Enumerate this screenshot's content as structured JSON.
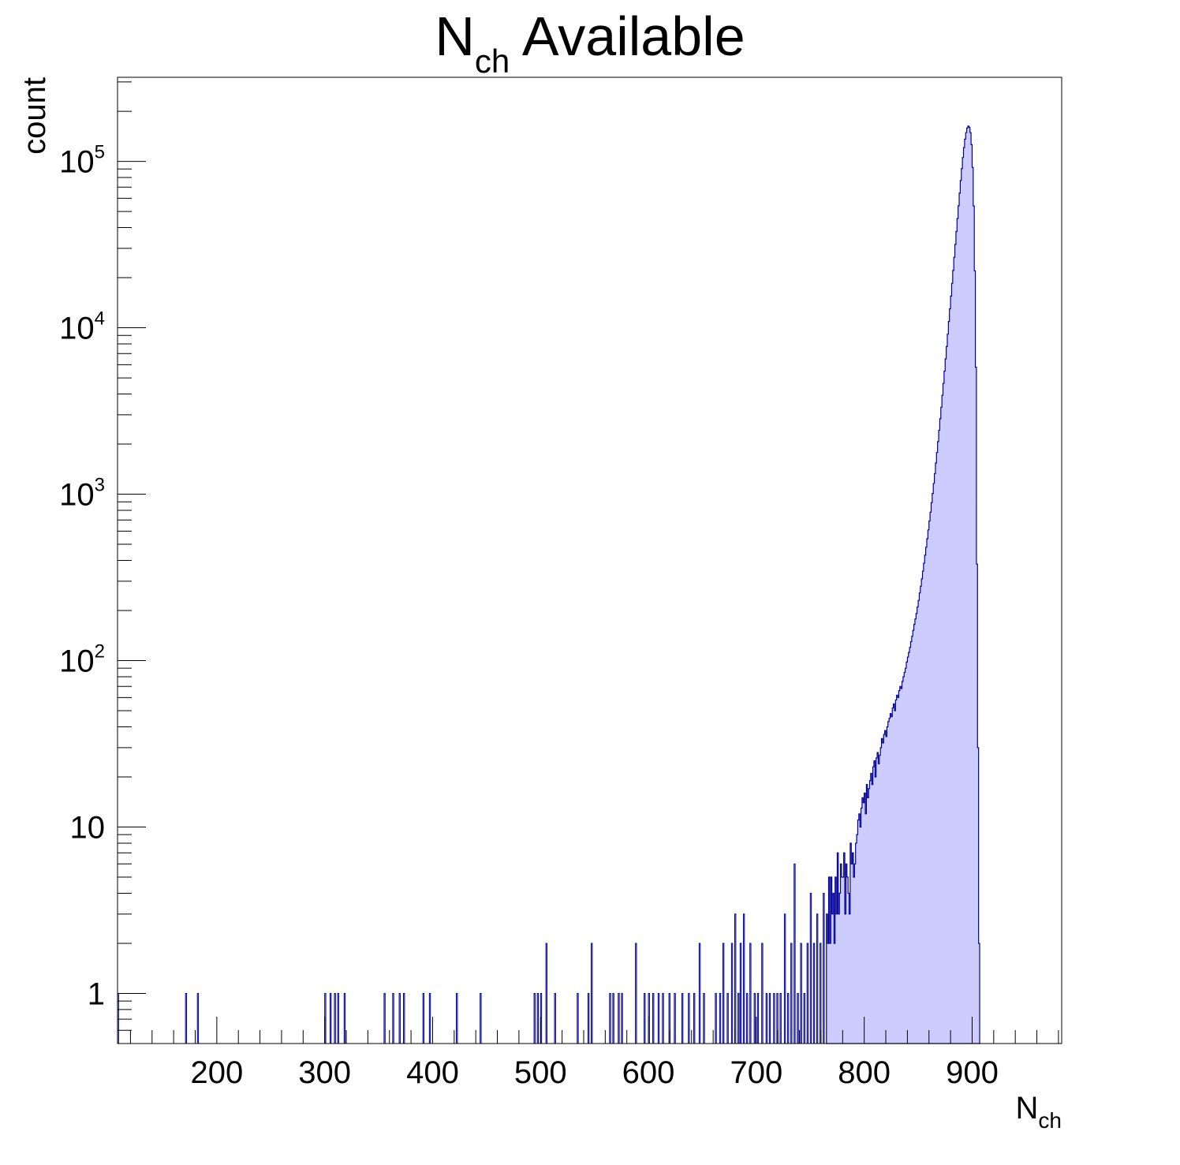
{
  "chart_data": {
    "type": "bar",
    "title": {
      "main": "N",
      "sub": "ch",
      "rest": " Available"
    },
    "xlabel": {
      "main": "N",
      "sub": "ch"
    },
    "ylabel": "count",
    "xlim": [
      108,
      983
    ],
    "ylim": [
      0.5,
      320000
    ],
    "yscale": "log",
    "grid": false,
    "legend": "none",
    "x_ticks": [
      200,
      300,
      400,
      500,
      600,
      700,
      800,
      900
    ],
    "y_ticks": [
      {
        "value": 1,
        "base": "1",
        "exp": ""
      },
      {
        "value": 10,
        "base": "10",
        "exp": ""
      },
      {
        "value": 100,
        "base": "10",
        "exp": "2"
      },
      {
        "value": 1000,
        "base": "10",
        "exp": "3"
      },
      {
        "value": 10000,
        "base": "10",
        "exp": "4"
      },
      {
        "value": 100000,
        "base": "10",
        "exp": "5"
      }
    ],
    "fill_color": "#ccccff",
    "line_color": "#000099",
    "sparse_entries": [
      {
        "x": 108,
        "y": 1
      },
      {
        "x": 171,
        "y": 1
      },
      {
        "x": 182,
        "y": 1
      },
      {
        "x": 300,
        "y": 1
      },
      {
        "x": 305,
        "y": 1
      },
      {
        "x": 309,
        "y": 1
      },
      {
        "x": 312,
        "y": 1
      },
      {
        "x": 318,
        "y": 1
      },
      {
        "x": 355,
        "y": 1
      },
      {
        "x": 363,
        "y": 1
      },
      {
        "x": 369,
        "y": 1
      },
      {
        "x": 373,
        "y": 1
      },
      {
        "x": 391,
        "y": 1
      },
      {
        "x": 397,
        "y": 1
      },
      {
        "x": 422,
        "y": 1
      },
      {
        "x": 444,
        "y": 1
      },
      {
        "x": 494,
        "y": 1
      },
      {
        "x": 497,
        "y": 1
      },
      {
        "x": 500,
        "y": 1
      },
      {
        "x": 505,
        "y": 2
      },
      {
        "x": 513,
        "y": 1
      },
      {
        "x": 534,
        "y": 1
      },
      {
        "x": 544,
        "y": 1
      },
      {
        "x": 547,
        "y": 2
      },
      {
        "x": 564,
        "y": 1
      },
      {
        "x": 567,
        "y": 1
      },
      {
        "x": 572,
        "y": 1
      },
      {
        "x": 575,
        "y": 1
      },
      {
        "x": 588,
        "y": 2
      },
      {
        "x": 596,
        "y": 1
      },
      {
        "x": 600,
        "y": 1
      },
      {
        "x": 604,
        "y": 1
      },
      {
        "x": 609,
        "y": 1
      },
      {
        "x": 613,
        "y": 1
      },
      {
        "x": 619,
        "y": 1
      },
      {
        "x": 624,
        "y": 1
      },
      {
        "x": 631,
        "y": 1
      },
      {
        "x": 637,
        "y": 1
      },
      {
        "x": 642,
        "y": 1
      },
      {
        "x": 647,
        "y": 2
      },
      {
        "x": 651,
        "y": 1
      },
      {
        "x": 662,
        "y": 1
      },
      {
        "x": 666,
        "y": 1
      },
      {
        "x": 669,
        "y": 2
      },
      {
        "x": 673,
        "y": 1
      },
      {
        "x": 677,
        "y": 2
      },
      {
        "x": 680,
        "y": 3
      },
      {
        "x": 683,
        "y": 1
      },
      {
        "x": 685,
        "y": 2
      },
      {
        "x": 688,
        "y": 3
      },
      {
        "x": 691,
        "y": 1
      },
      {
        "x": 694,
        "y": 2
      },
      {
        "x": 698,
        "y": 1
      },
      {
        "x": 701,
        "y": 1
      },
      {
        "x": 705,
        "y": 2
      },
      {
        "x": 709,
        "y": 1
      },
      {
        "x": 712,
        "y": 1
      },
      {
        "x": 716,
        "y": 1
      },
      {
        "x": 719,
        "y": 1
      },
      {
        "x": 722,
        "y": 1
      },
      {
        "x": 726,
        "y": 3
      },
      {
        "x": 729,
        "y": 1
      },
      {
        "x": 732,
        "y": 2
      },
      {
        "x": 735,
        "y": 6
      },
      {
        "x": 738,
        "y": 1
      },
      {
        "x": 741,
        "y": 2
      },
      {
        "x": 744,
        "y": 1
      },
      {
        "x": 747,
        "y": 2
      },
      {
        "x": 750,
        "y": 4
      },
      {
        "x": 753,
        "y": 2
      },
      {
        "x": 756,
        "y": 3
      },
      {
        "x": 759,
        "y": 2
      },
      {
        "x": 762,
        "y": 4
      }
    ],
    "dense_start": 765,
    "dense_bin_width": 1,
    "dense_values": [
      3,
      2,
      5,
      2,
      5,
      3,
      4,
      2,
      5,
      3,
      7,
      3,
      4,
      6,
      5,
      5,
      7,
      3,
      6,
      5,
      4,
      3,
      8,
      6,
      7,
      5,
      6,
      8,
      9,
      11,
      12,
      10,
      13,
      15,
      14,
      16,
      12,
      18,
      15,
      17,
      19,
      21,
      18,
      23,
      25,
      20,
      26,
      28,
      24,
      27,
      30,
      34,
      32,
      36,
      38,
      35,
      40,
      43,
      45,
      48,
      46,
      52,
      55,
      50,
      58,
      62,
      60,
      66,
      70,
      68,
      75,
      80,
      85,
      90,
      98,
      105,
      112,
      120,
      130,
      140,
      152,
      165,
      178,
      192,
      210,
      230,
      255,
      280,
      310,
      345,
      385,
      430,
      480,
      540,
      610,
      690,
      780,
      890,
      1010,
      1160,
      1330,
      1540,
      1780,
      2070,
      2420,
      2840,
      3330,
      3930,
      4640,
      5490,
      6500,
      7710,
      9150,
      10900,
      13000,
      15500,
      18500,
      22100,
      26500,
      31700,
      37900,
      45300,
      54100,
      64500,
      76700,
      90500,
      105500,
      121000,
      136000,
      149000,
      158500,
      163000,
      160500,
      149000,
      126000,
      92000,
      54000,
      22000,
      5800,
      380,
      30,
      2
    ]
  }
}
